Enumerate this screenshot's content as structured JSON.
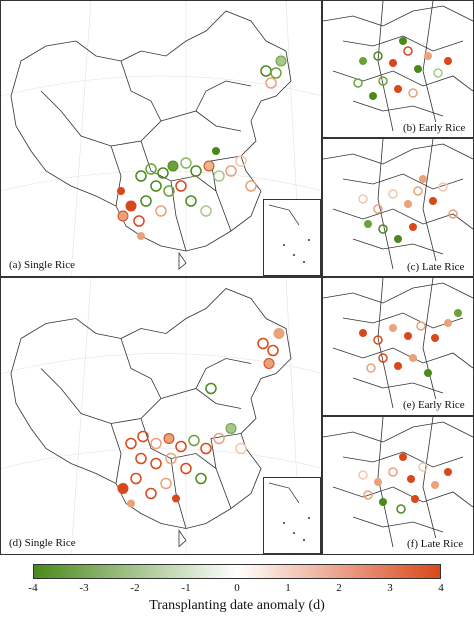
{
  "panels": {
    "a": {
      "label": "(a) Single Rice"
    },
    "b": {
      "label": "(b) Early Rice"
    },
    "c": {
      "label": "(c) Late Rice"
    },
    "d": {
      "label": "(d) Single Rice"
    },
    "e": {
      "label": "(e) Early Rice"
    },
    "f": {
      "label": "(f) Late Rice"
    }
  },
  "colorbar": {
    "title": "Transplanting date anomaly (d)",
    "min": -4,
    "max": 4,
    "ticks": [
      "-4",
      "-3",
      "-2",
      "-1",
      "0",
      "1",
      "2",
      "3",
      "4"
    ],
    "colors": {
      "negative": "#4a8a1c",
      "neutral": "#ffffff",
      "positive": "#d9481a"
    }
  }
}
